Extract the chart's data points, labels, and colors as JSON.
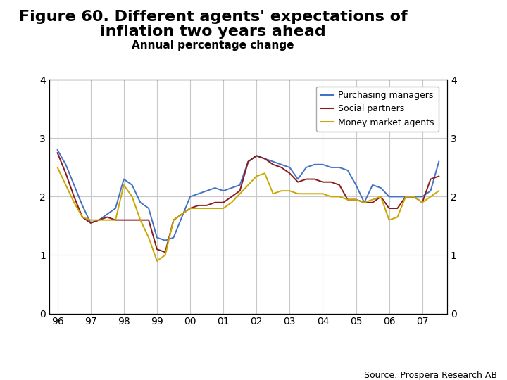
{
  "title_line1": "Figure 60. Different agents' expectations of",
  "title_line2": "inflation two years ahead",
  "subtitle": "Annual percentage change",
  "source": "Source: Prospera Research AB",
  "ylim": [
    0,
    4
  ],
  "yticks": [
    0,
    1,
    2,
    3,
    4
  ],
  "background_color": "#ffffff",
  "grid_color": "#c8c8c8",
  "series": {
    "purchasing_managers": {
      "color": "#4472c4",
      "label": "Purchasing managers",
      "x": [
        1996.0,
        1996.25,
        1996.5,
        1996.75,
        1997.0,
        1997.25,
        1997.5,
        1997.75,
        1998.0,
        1998.25,
        1998.5,
        1998.75,
        1999.0,
        1999.25,
        1999.5,
        1999.75,
        2000.0,
        2000.25,
        2000.5,
        2000.75,
        2001.0,
        2001.25,
        2001.5,
        2001.75,
        2002.0,
        2002.25,
        2002.5,
        2002.75,
        2003.0,
        2003.25,
        2003.5,
        2003.75,
        2004.0,
        2004.25,
        2004.5,
        2004.75,
        2005.0,
        2005.25,
        2005.5,
        2005.75,
        2006.0,
        2006.25,
        2006.5,
        2006.75,
        2007.0,
        2007.25,
        2007.5
      ],
      "y": [
        2.8,
        2.55,
        2.2,
        1.85,
        1.55,
        1.6,
        1.7,
        1.8,
        2.3,
        2.2,
        1.9,
        1.8,
        1.3,
        1.25,
        1.3,
        1.65,
        2.0,
        2.05,
        2.1,
        2.15,
        2.1,
        2.15,
        2.2,
        2.6,
        2.7,
        2.65,
        2.6,
        2.55,
        2.5,
        2.3,
        2.5,
        2.55,
        2.55,
        2.5,
        2.5,
        2.45,
        2.2,
        1.9,
        2.2,
        2.15,
        2.0,
        2.0,
        2.0,
        2.0,
        2.0,
        2.1,
        2.6
      ]
    },
    "social_partners": {
      "color": "#8b1a1a",
      "label": "Social partners",
      "x": [
        1996.0,
        1996.25,
        1996.5,
        1996.75,
        1997.0,
        1997.25,
        1997.5,
        1997.75,
        1998.0,
        1998.25,
        1998.5,
        1998.75,
        1999.0,
        1999.25,
        1999.5,
        1999.75,
        2000.0,
        2000.25,
        2000.5,
        2000.75,
        2001.0,
        2001.25,
        2001.5,
        2001.75,
        2002.0,
        2002.25,
        2002.5,
        2002.75,
        2003.0,
        2003.25,
        2003.5,
        2003.75,
        2004.0,
        2004.25,
        2004.5,
        2004.75,
        2005.0,
        2005.25,
        2005.5,
        2005.75,
        2006.0,
        2006.25,
        2006.5,
        2006.75,
        2007.0,
        2007.25,
        2007.5
      ],
      "y": [
        2.75,
        2.4,
        2.0,
        1.65,
        1.55,
        1.6,
        1.65,
        1.6,
        1.6,
        1.6,
        1.6,
        1.6,
        1.1,
        1.05,
        1.6,
        1.7,
        1.8,
        1.85,
        1.85,
        1.9,
        1.9,
        2.0,
        2.1,
        2.6,
        2.7,
        2.65,
        2.55,
        2.5,
        2.4,
        2.25,
        2.3,
        2.3,
        2.25,
        2.25,
        2.2,
        1.95,
        1.95,
        1.9,
        1.9,
        2.0,
        1.8,
        1.8,
        2.0,
        2.0,
        1.9,
        2.3,
        2.35
      ]
    },
    "money_market": {
      "color": "#c8a800",
      "label": "Money market agents",
      "x": [
        1996.0,
        1996.25,
        1996.5,
        1996.75,
        1997.0,
        1997.25,
        1997.5,
        1997.75,
        1998.0,
        1998.25,
        1998.5,
        1998.75,
        1999.0,
        1999.25,
        1999.5,
        1999.75,
        2000.0,
        2000.25,
        2000.5,
        2000.75,
        2001.0,
        2001.25,
        2001.5,
        2001.75,
        2002.0,
        2002.25,
        2002.5,
        2002.75,
        2003.0,
        2003.25,
        2003.5,
        2003.75,
        2004.0,
        2004.25,
        2004.5,
        2004.75,
        2005.0,
        2005.25,
        2005.5,
        2005.75,
        2006.0,
        2006.25,
        2006.5,
        2006.75,
        2007.0,
        2007.25,
        2007.5
      ],
      "y": [
        2.5,
        2.2,
        1.9,
        1.65,
        1.6,
        1.6,
        1.6,
        1.6,
        2.2,
        2.0,
        1.6,
        1.3,
        0.9,
        1.0,
        1.6,
        1.7,
        1.8,
        1.8,
        1.8,
        1.8,
        1.8,
        1.9,
        2.05,
        2.2,
        2.35,
        2.4,
        2.05,
        2.1,
        2.1,
        2.05,
        2.05,
        2.05,
        2.05,
        2.0,
        2.0,
        1.95,
        1.95,
        1.9,
        1.95,
        2.0,
        1.6,
        1.65,
        2.0,
        2.0,
        1.9,
        2.0,
        2.1
      ]
    }
  },
  "xtick_labels": [
    "96",
    "97",
    "98",
    "99",
    "00",
    "01",
    "02",
    "03",
    "04",
    "05",
    "06",
    "07"
  ],
  "xtick_positions": [
    1996,
    1997,
    1998,
    1999,
    2000,
    2001,
    2002,
    2003,
    2004,
    2005,
    2006,
    2007
  ],
  "title_fontsize": 16,
  "subtitle_fontsize": 11,
  "tick_fontsize": 10,
  "legend_fontsize": 9,
  "banner_color": "#1e3f8c",
  "logo_color": "#1e3f8c"
}
